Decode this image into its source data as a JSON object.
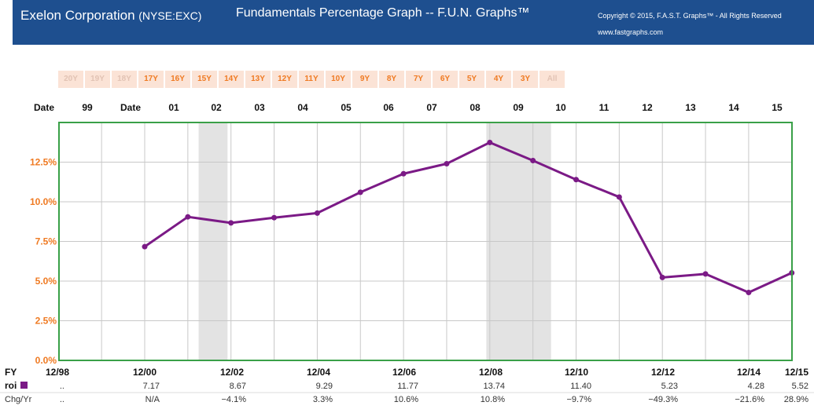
{
  "header": {
    "company": "Exelon Corporation",
    "ticker": "(NYSE:EXC)",
    "title": "Fundamentals Percentage Graph -- F.U.N. Graphs™",
    "copyright": "Copyright © 2015, F.A.S.T. Graphs™ - All Rights Reserved",
    "site": "www.fastgraphs.com"
  },
  "range_buttons": [
    {
      "label": "20Y",
      "enabled": false
    },
    {
      "label": "19Y",
      "enabled": false
    },
    {
      "label": "18Y",
      "enabled": false
    },
    {
      "label": "17Y",
      "enabled": true
    },
    {
      "label": "16Y",
      "enabled": true
    },
    {
      "label": "15Y",
      "enabled": true
    },
    {
      "label": "14Y",
      "enabled": true
    },
    {
      "label": "13Y",
      "enabled": true
    },
    {
      "label": "12Y",
      "enabled": true
    },
    {
      "label": "11Y",
      "enabled": true
    },
    {
      "label": "10Y",
      "enabled": true
    },
    {
      "label": "9Y",
      "enabled": true
    },
    {
      "label": "8Y",
      "enabled": true
    },
    {
      "label": "7Y",
      "enabled": true
    },
    {
      "label": "6Y",
      "enabled": true
    },
    {
      "label": "5Y",
      "enabled": true
    },
    {
      "label": "4Y",
      "enabled": true
    },
    {
      "label": "3Y",
      "enabled": true
    },
    {
      "label": "All",
      "enabled": false
    }
  ],
  "colors": {
    "header_bg": "#1e4f8f",
    "accent_orange": "#ef7a22",
    "plot_border": "#3aa048",
    "roi_line": "#7b1a86",
    "recession": "#e3e3e3"
  },
  "chart_data": {
    "type": "line",
    "top_axis_labels": [
      "Date",
      "99",
      "Date",
      "01",
      "02",
      "03",
      "04",
      "05",
      "06",
      "07",
      "08",
      "09",
      "10",
      "11",
      "12",
      "13",
      "14",
      "15"
    ],
    "bottom_axis_title": "FY",
    "bottom_axis_labels": [
      "12/98",
      "12/00",
      "12/02",
      "12/04",
      "12/06",
      "12/08",
      "12/10",
      "12/12",
      "12/14",
      "12/15"
    ],
    "y_ticks": [
      "0.0%",
      "2.5%",
      "5.0%",
      "7.5%",
      "10.0%",
      "12.5%"
    ],
    "ylim": [
      0,
      15
    ],
    "xlim": [
      1998,
      2015
    ],
    "grid": true,
    "recession_bands": [
      [
        2001.25,
        2001.92
      ],
      [
        2007.92,
        2009.42
      ]
    ],
    "series": [
      {
        "name": "roi",
        "x": [
          2000,
          2001,
          2002,
          2003,
          2004,
          2005,
          2006,
          2007,
          2008,
          2009,
          2010,
          2011,
          2012,
          2013,
          2014,
          2015
        ],
        "values": [
          7.17,
          9.05,
          8.67,
          9.0,
          9.29,
          10.6,
          11.77,
          12.4,
          13.74,
          12.6,
          11.4,
          10.3,
          5.23,
          5.45,
          4.28,
          5.52
        ]
      }
    ],
    "table": {
      "row_labels": [
        "roi",
        "Chg/Yr"
      ],
      "columns": [
        "12/98",
        "12/00",
        "12/02",
        "12/04",
        "12/06",
        "12/08",
        "12/10",
        "12/12",
        "12/14",
        "12/15"
      ],
      "roi": [
        "..",
        "7.17",
        "8.67",
        "9.29",
        "11.77",
        "13.74",
        "11.40",
        "5.23",
        "4.28",
        "5.52"
      ],
      "chg": [
        "..",
        "N/A",
        "−4.1%",
        "3.3%",
        "10.6%",
        "10.8%",
        "−9.7%",
        "−49.3%",
        "−21.6%",
        "28.9%"
      ]
    }
  }
}
